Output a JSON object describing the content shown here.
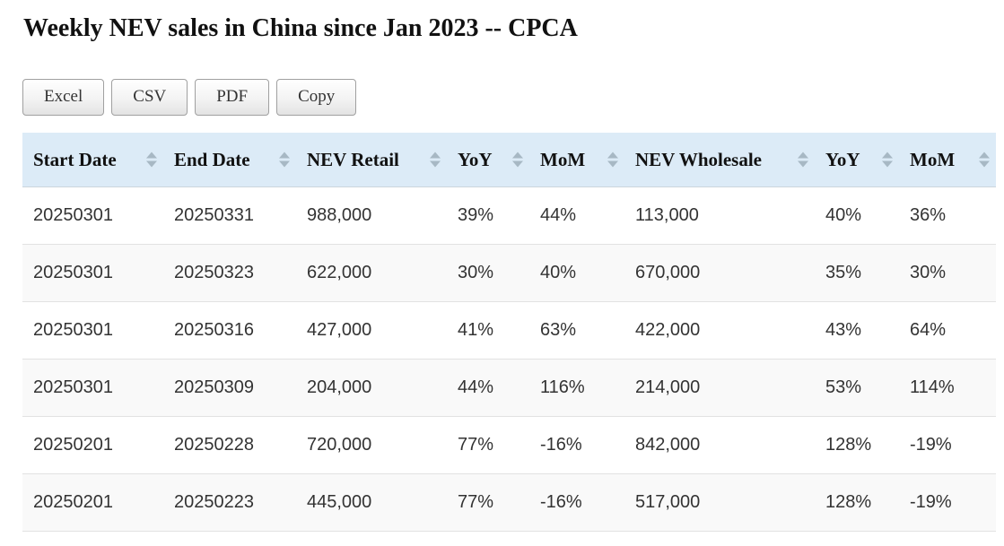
{
  "page": {
    "title": "Weekly NEV sales in China since Jan 2023 -- CPCA"
  },
  "toolbar": {
    "buttons": [
      {
        "label": "Excel"
      },
      {
        "label": "CSV"
      },
      {
        "label": "PDF"
      },
      {
        "label": "Copy"
      }
    ]
  },
  "table": {
    "columns": [
      {
        "label": "Start Date"
      },
      {
        "label": "End Date"
      },
      {
        "label": "NEV Retail"
      },
      {
        "label": "YoY"
      },
      {
        "label": "MoM"
      },
      {
        "label": "NEV Wholesale"
      },
      {
        "label": "YoY"
      },
      {
        "label": "MoM"
      }
    ],
    "rows": [
      [
        "20250301",
        "20250331",
        "988,000",
        "39%",
        "44%",
        "113,000",
        "40%",
        "36%"
      ],
      [
        "20250301",
        "20250323",
        "622,000",
        "30%",
        "40%",
        "670,000",
        "35%",
        "30%"
      ],
      [
        "20250301",
        "20250316",
        "427,000",
        "41%",
        "63%",
        "422,000",
        "43%",
        "64%"
      ],
      [
        "20250301",
        "20250309",
        "204,000",
        "44%",
        "116%",
        "214,000",
        "53%",
        "114%"
      ],
      [
        "20250201",
        "20250228",
        "720,000",
        "77%",
        "-16%",
        "842,000",
        "128%",
        "-19%"
      ],
      [
        "20250201",
        "20250223",
        "445,000",
        "77%",
        "-16%",
        "517,000",
        "128%",
        "-19%"
      ]
    ]
  },
  "colors": {
    "header_bg": "#dcebf7",
    "stripe_bg": "#f9f9f9",
    "sort_icon": "#a7b8c4"
  }
}
